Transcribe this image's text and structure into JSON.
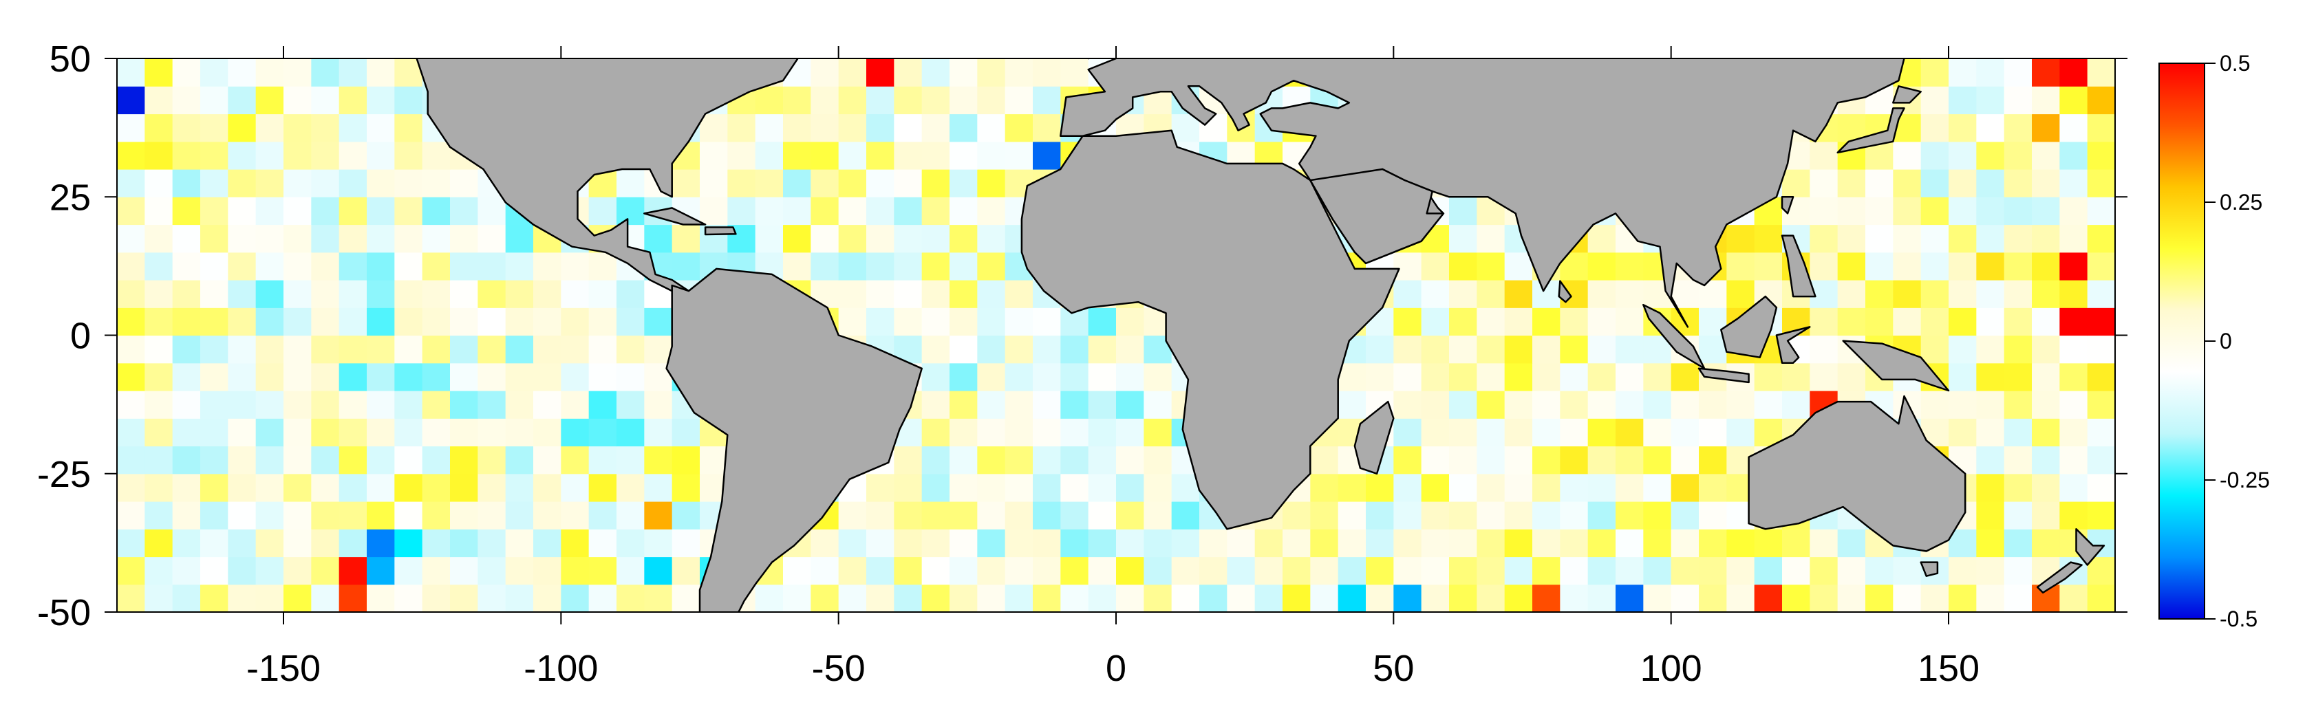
{
  "map": {
    "projection": "equirectangular",
    "extent": {
      "lon": [
        -180,
        180
      ],
      "lat": [
        -50,
        50
      ]
    },
    "grid_cell_deg": 5,
    "ocean_field": "gridded anomaly (diverging color scale)",
    "land_color": "#ababab",
    "coastline_color": "#000000",
    "x_ticks": [
      {
        "value": -150,
        "label": "-150"
      },
      {
        "value": -100,
        "label": "-100"
      },
      {
        "value": -50,
        "label": "-50"
      },
      {
        "value": 0,
        "label": "0"
      },
      {
        "value": 50,
        "label": "50"
      },
      {
        "value": 100,
        "label": "100"
      },
      {
        "value": 150,
        "label": "150"
      }
    ],
    "y_ticks": [
      {
        "value": 50,
        "label": "50"
      },
      {
        "value": 25,
        "label": "25"
      },
      {
        "value": 0,
        "label": "0"
      },
      {
        "value": -25,
        "label": "-25"
      },
      {
        "value": -50,
        "label": "-50"
      }
    ],
    "hotspots": [
      {
        "lon": 172.5,
        "lat": 12.5,
        "value": 0.5
      },
      {
        "lon": 172.5,
        "lat": 2.5,
        "value": 0.5
      },
      {
        "lon": 177.5,
        "lat": 2.5,
        "value": 0.5
      },
      {
        "lon": -42.5,
        "lat": 47.5,
        "value": 0.5
      },
      {
        "lon": -157.5,
        "lat": 52.5,
        "value": 0.5
      },
      {
        "lon": -137.5,
        "lat": -42.5,
        "value": 0.48
      },
      {
        "lon": -137.5,
        "lat": -47.5,
        "value": 0.42
      },
      {
        "lon": 107.5,
        "lat": -52.5,
        "value": 0.5
      },
      {
        "lon": 117.5,
        "lat": -47.5,
        "value": 0.45
      },
      {
        "lon": 167.5,
        "lat": 47.5,
        "value": 0.45
      },
      {
        "lon": 172.5,
        "lat": 47.5,
        "value": 0.5
      },
      {
        "lon": 127.5,
        "lat": -12.5,
        "value": 0.45
      },
      {
        "lon": -2.5,
        "lat": -52.5,
        "value": 0.45
      },
      {
        "lon": 2.5,
        "lat": -52.5,
        "value": 0.45
      },
      {
        "lon": 77.5,
        "lat": -47.5,
        "value": 0.4
      },
      {
        "lon": 167.5,
        "lat": -47.5,
        "value": 0.38
      },
      {
        "lon": -47.5,
        "lat": 52.5,
        "value": 0.4
      },
      {
        "lon": -82.5,
        "lat": -32.5,
        "value": 0.3
      },
      {
        "lon": 167.5,
        "lat": 37.5,
        "value": 0.3
      },
      {
        "lon": 177.5,
        "lat": 42.5,
        "value": 0.28
      },
      {
        "lon": -132.5,
        "lat": -37.5,
        "value": -0.4
      },
      {
        "lon": -127.5,
        "lat": -37.5,
        "value": -0.28
      },
      {
        "lon": -132.5,
        "lat": -42.5,
        "value": -0.35
      },
      {
        "lon": -12.5,
        "lat": 32.5,
        "value": -0.42
      },
      {
        "lon": -177.5,
        "lat": 42.5,
        "value": -0.48
      },
      {
        "lon": 87.5,
        "lat": -52.5,
        "value": -0.48
      },
      {
        "lon": 92.5,
        "lat": -47.5,
        "value": -0.42
      },
      {
        "lon": -157.5,
        "lat": -52.5,
        "value": -0.5
      },
      {
        "lon": -37.5,
        "lat": 52.5,
        "value": -0.5
      },
      {
        "lon": 52.5,
        "lat": -47.5,
        "value": -0.35
      },
      {
        "lon": 42.5,
        "lat": -47.5,
        "value": -0.3
      },
      {
        "lon": -102.5,
        "lat": -52.5,
        "value": -0.4
      },
      {
        "lon": -82.5,
        "lat": -42.5,
        "value": -0.3
      },
      {
        "lon": -72.5,
        "lat": -42.5,
        "value": -0.25
      }
    ]
  },
  "colorbar": {
    "min": -0.5,
    "max": 0.5,
    "stops": [
      "#0000dd",
      "#0090ff",
      "#00f2ff",
      "#bff7fb",
      "#ffffff",
      "#fffad0",
      "#ffff33",
      "#ffc400",
      "#ff5500",
      "#ff0000"
    ],
    "ticks": [
      {
        "value": 0.5,
        "label": "0.5"
      },
      {
        "value": 0.25,
        "label": "0.25"
      },
      {
        "value": 0,
        "label": "0"
      },
      {
        "value": -0.25,
        "label": "-0.25"
      },
      {
        "value": -0.5,
        "label": "-0.5"
      }
    ]
  }
}
